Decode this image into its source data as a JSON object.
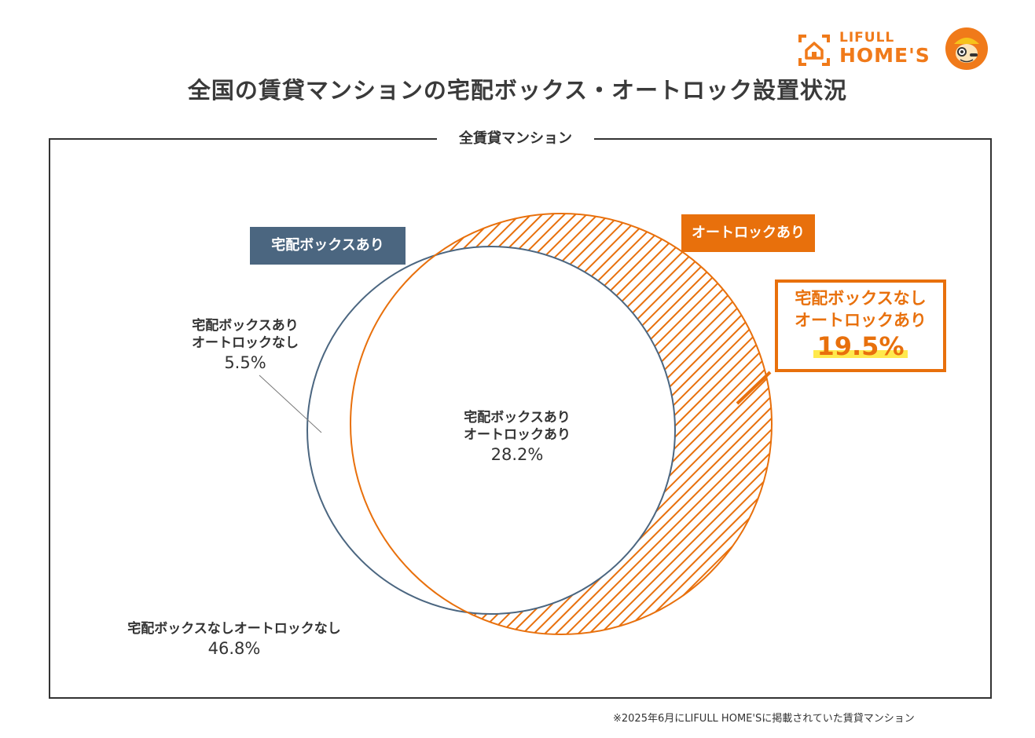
{
  "brand": {
    "line1": "LIFULL",
    "line2": "HOME'S",
    "color": "#f07a1a"
  },
  "title": "全国の賃貸マンションの宅配ボックス・オートロック設置状況",
  "frame_label": "全賃貸マンション",
  "footnote": "※2025年6月にLIFULL HOME'Sに掲載されていた賃貸マンション",
  "chart_data": {
    "type": "venn",
    "title": "全国の賃貸マンションの宅配ボックス・オートロック設置状況",
    "universe": "全賃貸マンション",
    "sets": [
      {
        "name": "宅配ボックスあり",
        "color": "#4b6680"
      },
      {
        "name": "オートロックあり",
        "color": "#e8700c"
      }
    ],
    "regions": [
      {
        "label_line1": "宅配ボックスあり",
        "label_line2": "オートロックなし",
        "value": 5.5,
        "display": "5.5%"
      },
      {
        "label_line1": "宅配ボックスあり",
        "label_line2": "オートロックあり",
        "value": 28.2,
        "display": "28.2%"
      },
      {
        "label_line1": "宅配ボックスなし",
        "label_line2": "オートロックあり",
        "value": 19.5,
        "display": "19.5%"
      },
      {
        "label_line1": "宅配ボックスなしオートロックなし",
        "label_line2": "",
        "value": 46.8,
        "display": "46.8%"
      }
    ],
    "highlight_region": 2,
    "units": "%"
  }
}
